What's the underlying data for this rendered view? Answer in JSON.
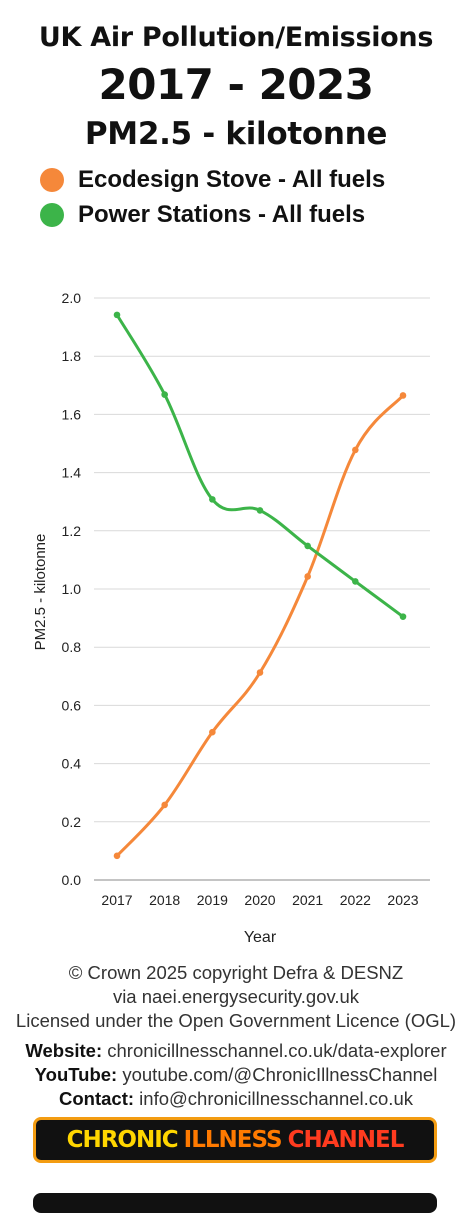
{
  "titles": {
    "line1": "UK Air Pollution/Emissions",
    "line2": "2017 - 2023",
    "line3": "PM2.5 - kilotonne"
  },
  "legend": [
    {
      "label": "Ecodesign Stove - All fuels",
      "color": "#F5883A"
    },
    {
      "label": "Power Stations - All fuels",
      "color": "#3CB449"
    }
  ],
  "chart_data": {
    "type": "line",
    "x": [
      "2017",
      "2018",
      "2019",
      "2020",
      "2021",
      "2022",
      "2023"
    ],
    "series": [
      {
        "name": "Ecodesign Stove - All fuels",
        "color": "#F5883A",
        "values": [
          0.083,
          0.258,
          0.508,
          0.713,
          1.043,
          1.478,
          1.665
        ]
      },
      {
        "name": "Power Stations - All fuels",
        "color": "#3CB449",
        "values": [
          1.942,
          1.668,
          1.308,
          1.27,
          1.148,
          1.026,
          0.905
        ]
      }
    ],
    "xlabel": "Year",
    "ylabel": "PM2.5 - kilotonne",
    "ylim": [
      0,
      2.0
    ],
    "yticks": [
      "0.0",
      "0.2",
      "0.4",
      "0.6",
      "0.8",
      "1.0",
      "1.2",
      "1.4",
      "1.6",
      "1.8",
      "2.0"
    ],
    "grid": true
  },
  "footer": {
    "copyright": "© Crown 2025 copyright Defra & DESNZ",
    "via": "via naei.energysecurity.gov.uk",
    "licence": "Licensed under the Open Government Licence (OGL)",
    "website_label": "Website:",
    "website_value": "chronicillnesschannel.co.uk/data-explorer",
    "youtube_label": "YouTube:",
    "youtube_value": "youtube.com/@ChronicIllnessChannel",
    "contact_label": "Contact:",
    "contact_value": "info@chronicillnesschannel.co.uk"
  },
  "banner": {
    "word1": "CHRONIC",
    "word2": "ILLNESS",
    "word3": "CHANNEL"
  }
}
